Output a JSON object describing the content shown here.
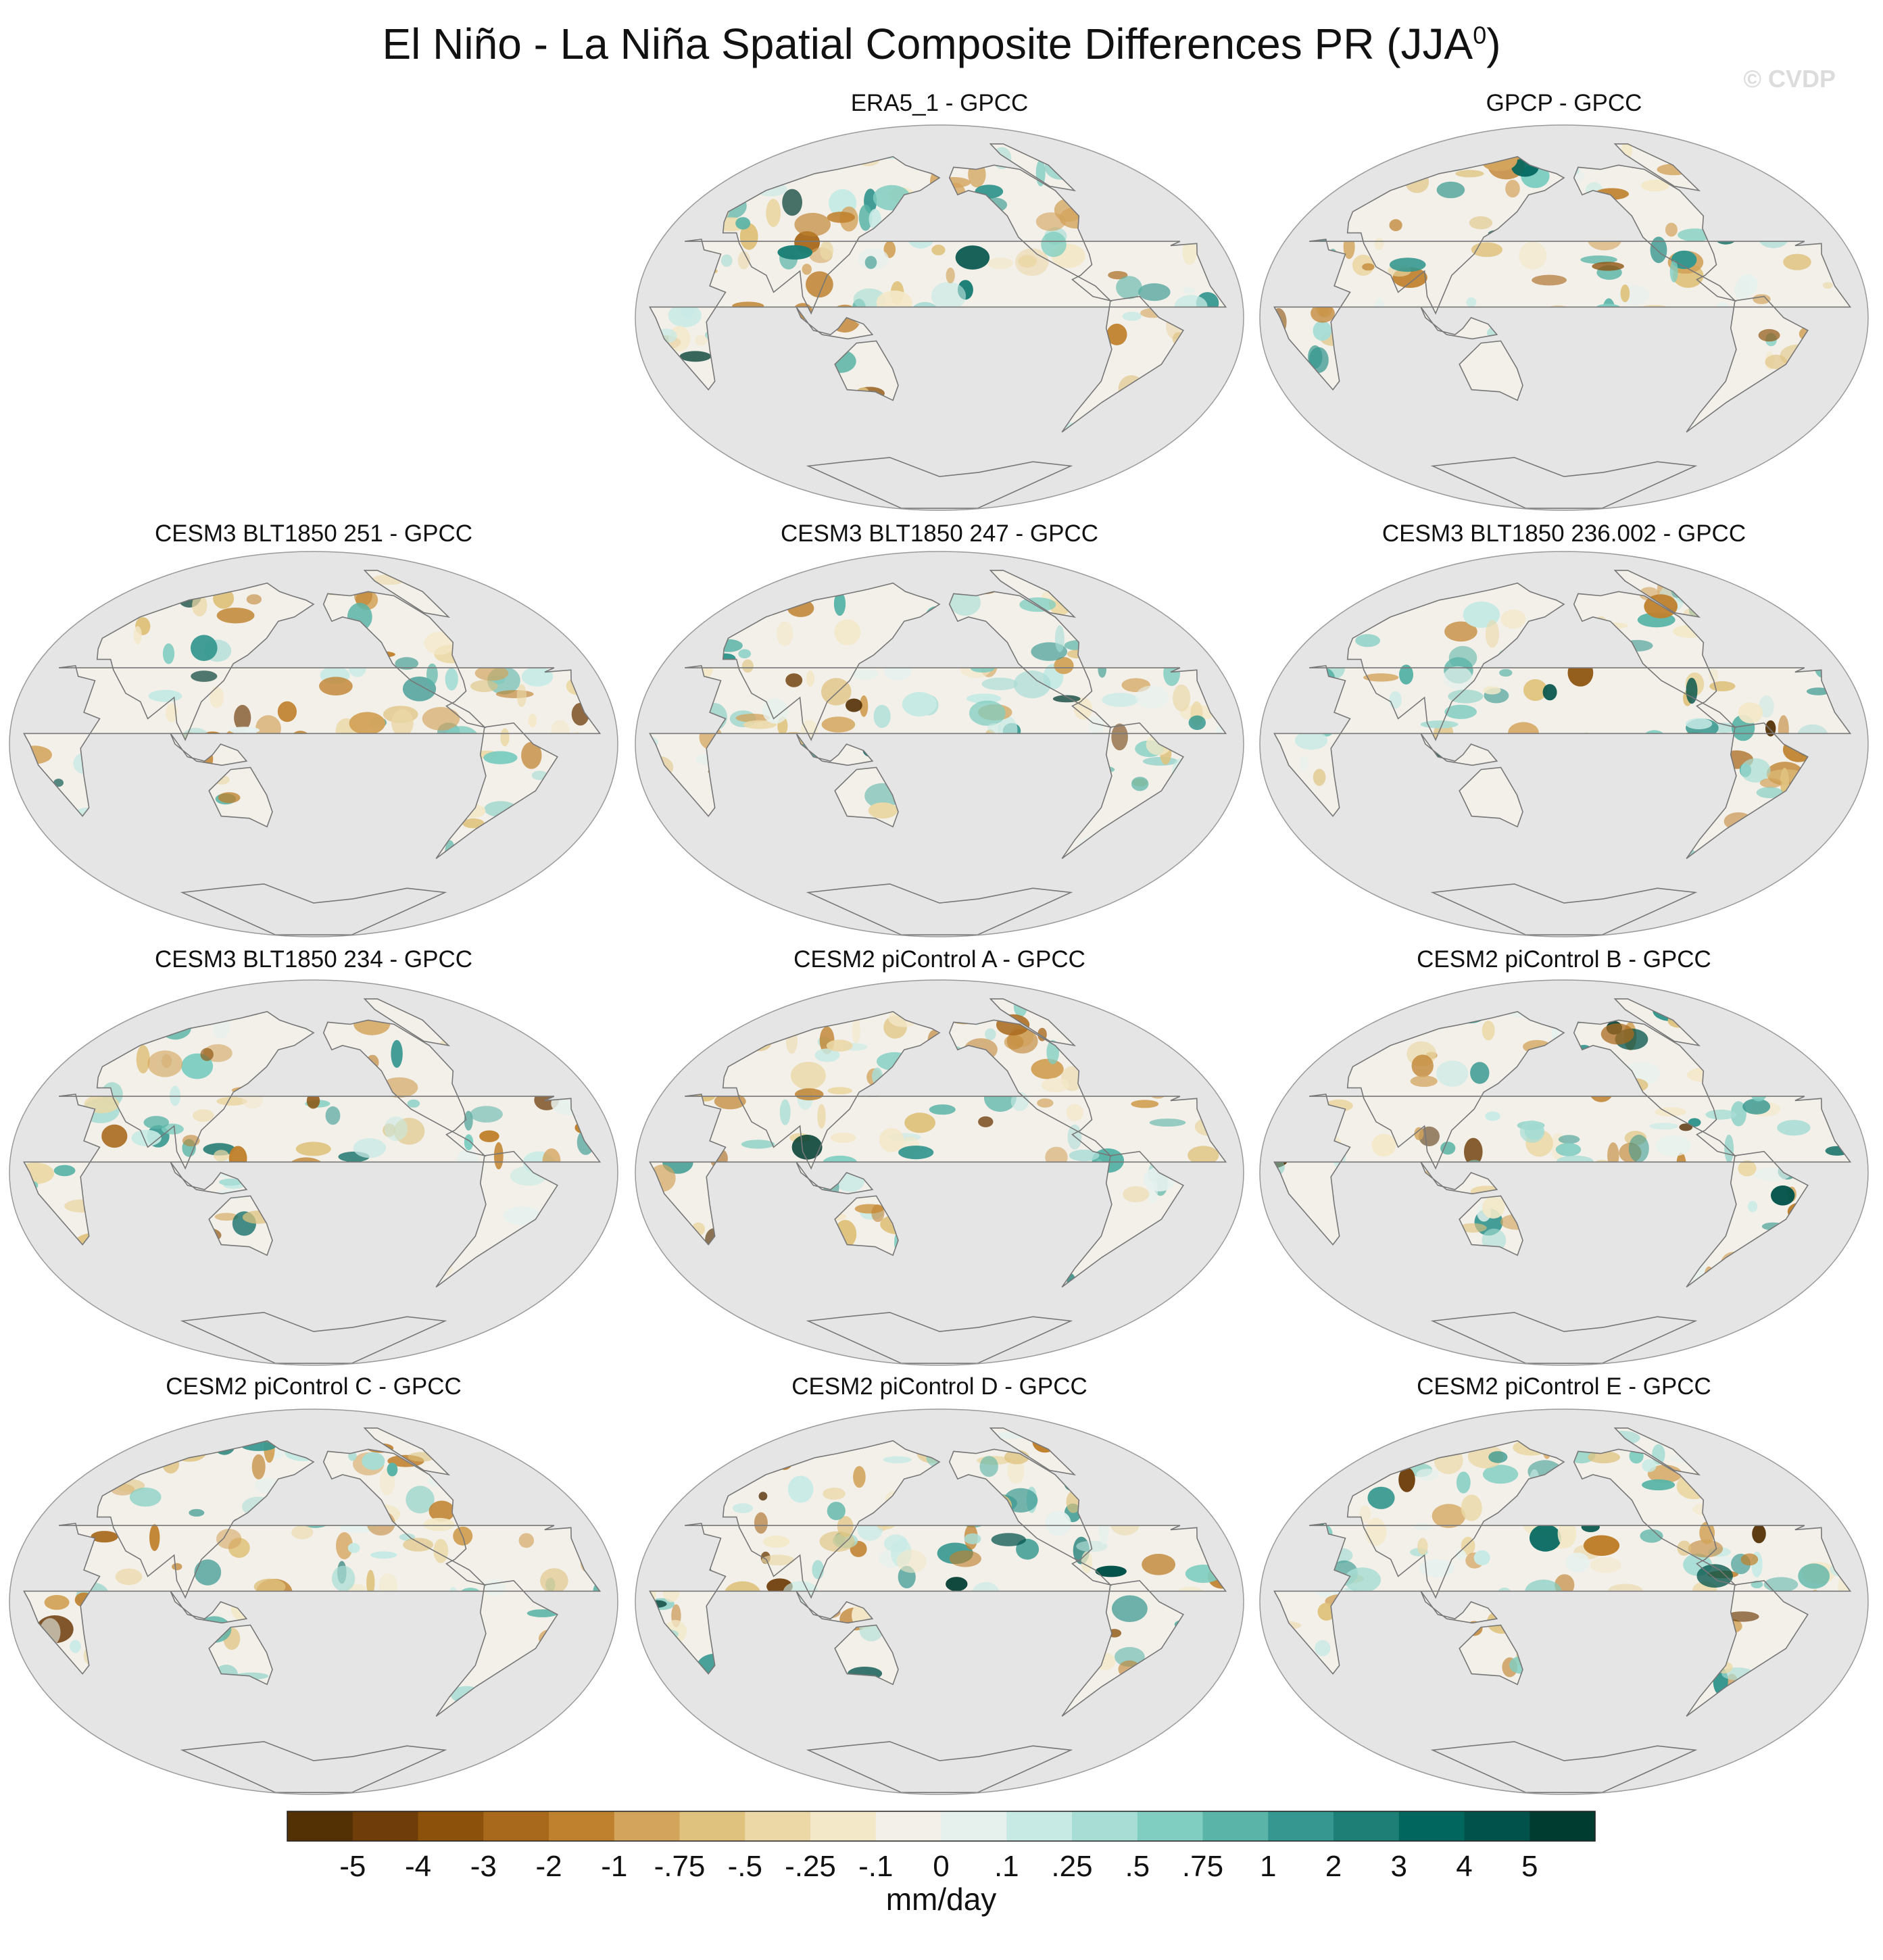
{
  "title": {
    "main": "El Niño - La Niña Spatial Composite Differences PR (JJA",
    "sup": "0",
    "close": ")"
  },
  "watermark": "© CVDP",
  "panels": [
    {
      "row": 0,
      "col": 1,
      "title": "ERA5_1 - GPCC"
    },
    {
      "row": 0,
      "col": 2,
      "title": "GPCP - GPCC"
    },
    {
      "row": 1,
      "col": 0,
      "title": "CESM3 BLT1850 251 - GPCC"
    },
    {
      "row": 1,
      "col": 1,
      "title": "CESM3 BLT1850 247 - GPCC"
    },
    {
      "row": 1,
      "col": 2,
      "title": "CESM3 BLT1850 236.002 - GPCC"
    },
    {
      "row": 2,
      "col": 0,
      "title": "CESM3 BLT1850 234 - GPCC"
    },
    {
      "row": 2,
      "col": 1,
      "title": "CESM2 piControl A - GPCC"
    },
    {
      "row": 2,
      "col": 2,
      "title": "CESM2 piControl B - GPCC"
    },
    {
      "row": 3,
      "col": 0,
      "title": "CESM2 piControl C - GPCC"
    },
    {
      "row": 3,
      "col": 1,
      "title": "CESM2 piControl D - GPCC"
    },
    {
      "row": 3,
      "col": 2,
      "title": "CESM2 piControl E - GPCC"
    }
  ],
  "colorbar": {
    "labels": [
      "-5",
      "-4",
      "-3",
      "-2",
      "-1",
      "-.75",
      "-.5",
      "-.25",
      "-.1",
      "0",
      ".1",
      ".25",
      ".5",
      ".75",
      "1",
      "2",
      "3",
      "4",
      "5"
    ],
    "colors": [
      "#543005",
      "#6e3d0a",
      "#8c510a",
      "#a8691c",
      "#bf812d",
      "#d3a45c",
      "#dfc27d",
      "#ebd8a6",
      "#f3e8c8",
      "#f3f0ea",
      "#e6f1ee",
      "#c7eae5",
      "#a8ddd5",
      "#80cdc1",
      "#5ab4a7",
      "#35978f",
      "#1d7f76",
      "#01665e",
      "#01524a",
      "#003c30"
    ],
    "units": "mm/day"
  },
  "colors": {
    "ocean": "#e5e5e5",
    "coast": "#777777"
  }
}
